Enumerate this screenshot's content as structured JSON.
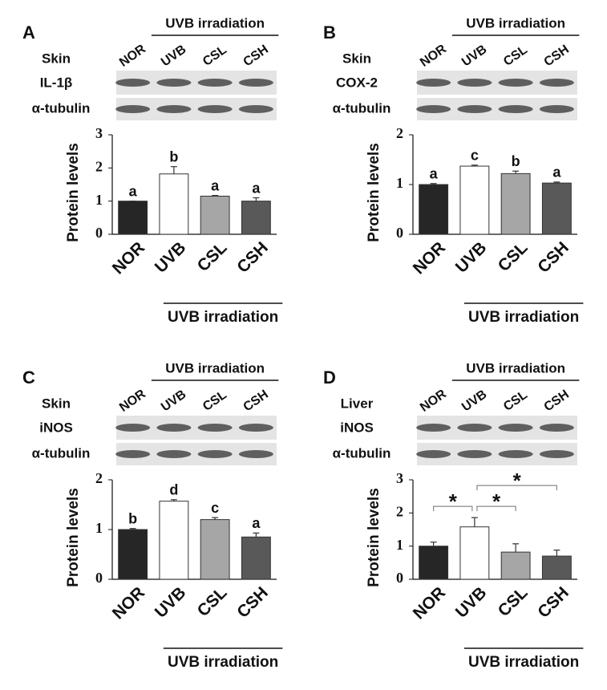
{
  "chart_data": [
    {
      "type": "bar",
      "panel": "A",
      "tissue": "Skin",
      "protein": "IL-1β",
      "loading_control": "α-tubulin",
      "group_label": "UVB irradiation",
      "ylabel": "Protein levels",
      "categories": [
        "NOR",
        "UVB",
        "CSL",
        "CSH"
      ],
      "values": [
        1.0,
        1.82,
        1.15,
        1.0
      ],
      "errors": [
        0,
        0.22,
        0.02,
        0.1
      ],
      "letters": [
        "a",
        "b",
        "a",
        "a"
      ],
      "colors": [
        "#262626",
        "#ffffff",
        "#a6a6a6",
        "#595959"
      ],
      "ylim": [
        0,
        3
      ],
      "yticks": [
        0,
        1,
        2,
        3
      ]
    },
    {
      "type": "bar",
      "panel": "B",
      "tissue": "Skin",
      "protein": "COX-2",
      "loading_control": "α-tubulin",
      "group_label": "UVB irradiation",
      "ylabel": "Protein levels",
      "categories": [
        "NOR",
        "UVB",
        "CSL",
        "CSH"
      ],
      "values": [
        1.0,
        1.37,
        1.22,
        1.03
      ],
      "errors": [
        0.02,
        0.02,
        0.05,
        0.02
      ],
      "letters": [
        "a",
        "c",
        "b",
        "a"
      ],
      "colors": [
        "#262626",
        "#ffffff",
        "#a6a6a6",
        "#595959"
      ],
      "ylim": [
        0,
        2
      ],
      "yticks": [
        0,
        1,
        2
      ]
    },
    {
      "type": "bar",
      "panel": "C",
      "tissue": "Skin",
      "protein": "iNOS",
      "loading_control": "α-tubulin",
      "group_label": "UVB irradiation",
      "ylabel": "Protein levels",
      "categories": [
        "NOR",
        "UVB",
        "CSL",
        "CSH"
      ],
      "values": [
        1.0,
        1.57,
        1.2,
        0.85
      ],
      "errors": [
        0.02,
        0.03,
        0.04,
        0.08
      ],
      "letters": [
        "b",
        "d",
        "c",
        "a"
      ],
      "colors": [
        "#262626",
        "#ffffff",
        "#a6a6a6",
        "#595959"
      ],
      "ylim": [
        0,
        2
      ],
      "yticks": [
        0,
        1,
        2
      ]
    },
    {
      "type": "bar",
      "panel": "D",
      "tissue": "Liver",
      "protein": "iNOS",
      "loading_control": "α-tubulin",
      "group_label": "UVB irradiation",
      "ylabel": "Protein levels",
      "categories": [
        "NOR",
        "UVB",
        "CSL",
        "CSH"
      ],
      "values": [
        1.0,
        1.58,
        0.82,
        0.7
      ],
      "errors": [
        0.12,
        0.28,
        0.25,
        0.18
      ],
      "significance": [
        {
          "groups": [
            "NOR",
            "UVB"
          ],
          "label": "*"
        },
        {
          "groups": [
            "UVB",
            "CSL"
          ],
          "label": "*"
        },
        {
          "groups": [
            "UVB",
            "CSH"
          ],
          "label": "*"
        }
      ],
      "colors": [
        "#262626",
        "#ffffff",
        "#a6a6a6",
        "#595959"
      ],
      "ylim": [
        0,
        3
      ],
      "yticks": [
        0,
        1,
        2,
        3
      ]
    }
  ]
}
